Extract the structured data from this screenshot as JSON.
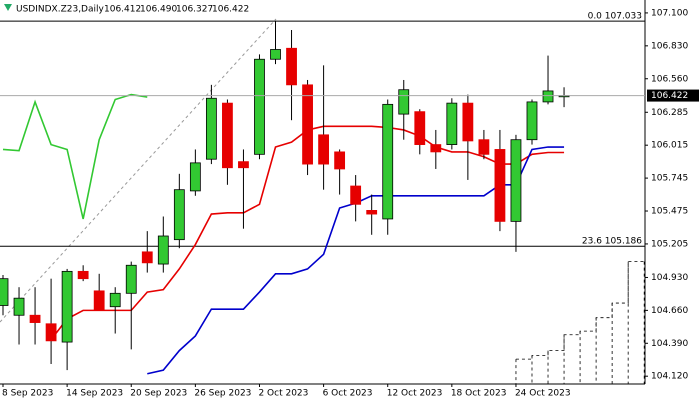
{
  "chart_data": {
    "type": "candlestick",
    "title": "USDINDX.Z23,Daily",
    "header_values": [
      "106.412",
      "106.490",
      "106.327",
      "106.422"
    ],
    "categories": [
      "8 Sep 2023",
      null,
      null,
      null,
      "14 Sep 2023",
      null,
      null,
      null,
      "20 Sep 2023",
      null,
      null,
      null,
      "26 Sep 2023",
      null,
      null,
      null,
      "2 Oct 2023",
      null,
      null,
      null,
      "6 Oct 2023",
      null,
      null,
      null,
      "12 Oct 2023",
      null,
      null,
      null,
      "18 Oct 2023",
      null,
      null,
      null,
      "24 Oct 2023",
      null,
      null,
      null,
      null,
      null,
      null,
      null,
      null
    ],
    "open": [
      104.7,
      104.62,
      104.62,
      104.55,
      104.4,
      104.98,
      104.82,
      104.69,
      104.8,
      105.14,
      105.04,
      105.24,
      105.64,
      105.9,
      106.36,
      105.88,
      105.94,
      106.72,
      106.81,
      106.51,
      106.1,
      105.96,
      105.68,
      105.48,
      105.41,
      106.27,
      106.29,
      106.02,
      106.02,
      106.36,
      106.06,
      105.98,
      105.39,
      106.06,
      106.37,
      106.412,
      null,
      null,
      null,
      null,
      null
    ],
    "high": [
      104.95,
      104.85,
      104.85,
      104.92,
      105.0,
      105.03,
      104.96,
      104.85,
      105.06,
      105.31,
      105.43,
      105.78,
      105.98,
      106.51,
      106.39,
      105.98,
      106.76,
      107.033,
      106.96,
      106.55,
      106.67,
      105.98,
      105.77,
      105.61,
      106.39,
      106.55,
      106.31,
      106.14,
      106.4,
      106.43,
      106.14,
      106.14,
      106.1,
      106.39,
      106.75,
      106.49,
      null,
      null,
      null,
      null,
      null
    ],
    "low": [
      104.62,
      104.38,
      104.38,
      104.22,
      104.17,
      104.9,
      104.67,
      104.47,
      104.34,
      104.97,
      104.97,
      105.17,
      105.6,
      105.86,
      105.69,
      105.33,
      105.9,
      106.68,
      106.22,
      105.77,
      105.65,
      105.61,
      105.39,
      105.28,
      105.28,
      106.06,
      105.94,
      105.82,
      105.98,
      105.73,
      105.9,
      105.31,
      105.14,
      106.02,
      106.35,
      106.327,
      null,
      null,
      null,
      null,
      null
    ],
    "close": [
      104.92,
      104.76,
      104.56,
      104.41,
      104.98,
      104.92,
      104.66,
      104.8,
      105.03,
      105.05,
      105.27,
      105.65,
      105.87,
      106.4,
      105.83,
      105.83,
      106.72,
      106.8,
      106.51,
      105.86,
      105.86,
      105.82,
      105.53,
      105.45,
      106.35,
      106.47,
      106.02,
      105.96,
      106.36,
      106.05,
      105.94,
      105.39,
      106.06,
      106.37,
      106.46,
      106.422,
      null,
      null,
      null,
      null,
      null
    ],
    "up_color": "#32c832",
    "down_color": "#e60000",
    "series": [
      {
        "color": "#e60000",
        "values": [
          null,
          null,
          null,
          104.42,
          104.59,
          104.66,
          104.66,
          104.66,
          104.66,
          104.81,
          104.83,
          105.0,
          105.2,
          105.45,
          105.46,
          105.46,
          105.53,
          106.0,
          106.04,
          106.14,
          106.17,
          106.17,
          106.17,
          106.17,
          106.16,
          106.14,
          106.09,
          106.0,
          105.96,
          105.96,
          105.92,
          105.86,
          105.86,
          105.94,
          105.955,
          105.955,
          null,
          null,
          null,
          null,
          null
        ]
      },
      {
        "color": "#0000cc",
        "values": [
          null,
          null,
          null,
          null,
          null,
          null,
          null,
          null,
          null,
          104.14,
          104.17,
          104.33,
          104.45,
          104.67,
          104.67,
          104.67,
          104.81,
          104.96,
          104.96,
          105.0,
          105.12,
          105.5,
          105.54,
          105.6,
          105.6,
          105.6,
          105.6,
          105.6,
          105.6,
          105.6,
          105.6,
          105.69,
          105.69,
          105.98,
          106.0,
          106.0,
          null,
          null,
          null,
          null,
          null
        ]
      },
      {
        "color": "#32c832",
        "values": [
          105.98,
          105.97,
          106.37,
          106.02,
          105.98,
          105.41,
          106.06,
          106.39,
          106.43,
          106.41,
          null,
          null,
          null,
          null,
          null,
          null,
          null,
          null,
          null,
          null,
          null,
          null,
          null,
          null,
          null,
          null,
          null,
          null,
          null,
          null,
          null,
          null,
          null,
          null,
          null,
          null,
          null,
          null,
          null,
          null,
          null
        ]
      },
      {
        "color": "#000000",
        "style": "cloud",
        "values": [
          null,
          null,
          null,
          null,
          null,
          null,
          null,
          null,
          null,
          null,
          null,
          null,
          null,
          null,
          null,
          null,
          null,
          null,
          null,
          null,
          null,
          null,
          null,
          null,
          null,
          null,
          null,
          null,
          null,
          null,
          null,
          null,
          104.26,
          104.29,
          104.33,
          104.46,
          104.49,
          104.6,
          104.72,
          105.06,
          105.06
        ]
      }
    ],
    "levels": [
      {
        "value": 107.033,
        "label": "0.0 107.033"
      },
      {
        "value": 105.186,
        "label": "23.6 105.186"
      }
    ],
    "price_label": "106.422",
    "ylim": [
      104.056,
      107.206
    ],
    "yticks": [
      {
        "value": 107.1,
        "label": "107.100"
      },
      {
        "value": 106.83,
        "label": "106.830"
      },
      {
        "value": 106.56,
        "label": "106.560"
      },
      {
        "value": 106.285,
        "label": "106.285"
      },
      {
        "value": 106.015,
        "label": "106.015"
      },
      {
        "value": 105.745,
        "label": "105.745"
      },
      {
        "value": 105.475,
        "label": "105.475"
      },
      {
        "value": 105.205,
        "label": "105.205"
      },
      {
        "value": 104.93,
        "label": "104.930"
      },
      {
        "value": 104.66,
        "label": "104.660"
      },
      {
        "value": 104.39,
        "label": "104.390"
      },
      {
        "value": 104.12,
        "label": "104.120"
      }
    ]
  }
}
